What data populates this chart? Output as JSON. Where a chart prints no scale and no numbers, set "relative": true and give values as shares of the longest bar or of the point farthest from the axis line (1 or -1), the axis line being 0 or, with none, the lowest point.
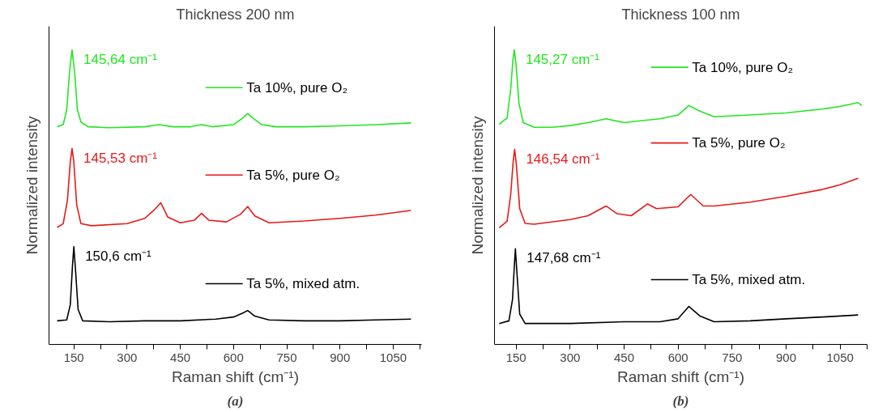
{
  "chart_data": [
    {
      "type": "line",
      "title": "Thickness 200 nm",
      "xlabel": "Raman shift (cm⁻¹)",
      "ylabel": "Normalized intensity",
      "relative": true,
      "grid": false,
      "legend": "right",
      "marker": "none",
      "line_style": "solid",
      "xlim": [
        80,
        1130
      ],
      "xticks": [
        150,
        {
          "value": 225,
          "label": null
        },
        300,
        {
          "value": 375,
          "label": null
        },
        450,
        {
          "value": 525,
          "label": null
        },
        600,
        {
          "value": 675,
          "label": null
        },
        750,
        {
          "value": 825,
          "label": null
        },
        900,
        {
          "value": 975,
          "label": null
        },
        1050,
        {
          "value": 1125,
          "label": null
        }
      ],
      "series": [
        {
          "name": "Ta 10%, pure O₂",
          "color": "#22e622",
          "x": [
            103,
            120,
            130,
            138,
            145,
            152,
            160,
            170,
            190,
            250,
            350,
            390,
            430,
            480,
            510,
            540,
            600,
            625,
            640,
            655,
            680,
            720,
            800,
            900,
            1000,
            1100
          ],
          "values": [
            0.739,
            0.746,
            0.797,
            0.927,
            1.0,
            0.927,
            0.797,
            0.755,
            0.739,
            0.736,
            0.739,
            0.746,
            0.739,
            0.739,
            0.746,
            0.739,
            0.746,
            0.768,
            0.784,
            0.768,
            0.746,
            0.739,
            0.739,
            0.742,
            0.746,
            0.752
          ]
        },
        {
          "name": "Ta 5%, pure O₂",
          "color": "#e81818",
          "x": [
            103,
            120,
            132,
            140,
            145,
            150,
            158,
            170,
            200,
            300,
            350,
            375,
            395,
            415,
            450,
            490,
            510,
            530,
            580,
            620,
            640,
            660,
            700,
            800,
            900,
            1000,
            1100
          ],
          "values": [
            0.397,
            0.41,
            0.49,
            0.62,
            0.665,
            0.62,
            0.474,
            0.41,
            0.403,
            0.41,
            0.428,
            0.455,
            0.481,
            0.432,
            0.413,
            0.422,
            0.445,
            0.422,
            0.416,
            0.442,
            0.468,
            0.436,
            0.413,
            0.419,
            0.428,
            0.439,
            0.455
          ]
        },
        {
          "name": "Ta 5%, mixed atm.",
          "color": "#000000",
          "x": [
            103,
            130,
            140,
            146,
            150,
            155,
            162,
            175,
            250,
            350,
            450,
            550,
            600,
            625,
            640,
            660,
            700,
            800,
            900,
            1000,
            1100
          ],
          "values": [
            0.08,
            0.083,
            0.135,
            0.264,
            0.332,
            0.248,
            0.119,
            0.08,
            0.077,
            0.08,
            0.08,
            0.086,
            0.093,
            0.106,
            0.115,
            0.096,
            0.083,
            0.08,
            0.08,
            0.083,
            0.086
          ]
        }
      ],
      "annotations": [
        {
          "text": "145,64 cm⁻¹",
          "x": 145,
          "y": 1.0
        },
        {
          "text": "145,53 cm⁻¹",
          "x": 145,
          "y": 0.665
        },
        {
          "text": "150,6 cm⁻¹",
          "x": 150,
          "y": 0.332
        },
        "(a)"
      ]
    },
    {
      "type": "line",
      "title": "Thickness 100 nm",
      "xlabel": "Raman shift (cm⁻¹)",
      "ylabel": "Normalized intensity",
      "relative": true,
      "grid": false,
      "legend": "right",
      "marker": "none",
      "line_style": "solid",
      "xlim": [
        90,
        1125
      ],
      "xticks": [
        150,
        {
          "value": 225,
          "label": null
        },
        300,
        {
          "value": 375,
          "label": null
        },
        450,
        {
          "value": 525,
          "label": null
        },
        600,
        {
          "value": 675,
          "label": null
        },
        750,
        {
          "value": 825,
          "label": null
        },
        900,
        {
          "value": 975,
          "label": null
        },
        1050,
        {
          "value": 1125,
          "label": null
        }
      ],
      "series": [
        {
          "name": "Ta 10%, pure O₂",
          "color": "#22e622",
          "x": [
            103,
            125,
            135,
            141,
            145,
            150,
            158,
            170,
            200,
            250,
            300,
            350,
            400,
            450,
            500,
            550,
            600,
            630,
            660,
            700,
            800,
            900,
            1000,
            1050,
            1100,
            1110
          ],
          "values": [
            0.747,
            0.769,
            0.867,
            0.964,
            1.0,
            0.948,
            0.818,
            0.753,
            0.737,
            0.737,
            0.743,
            0.753,
            0.766,
            0.753,
            0.76,
            0.766,
            0.779,
            0.811,
            0.792,
            0.773,
            0.779,
            0.786,
            0.799,
            0.808,
            0.821,
            0.811
          ]
        },
        {
          "name": "Ta 5%, pure O₂",
          "color": "#e81818",
          "x": [
            103,
            125,
            135,
            142,
            146,
            151,
            160,
            175,
            200,
            300,
            350,
            400,
            430,
            470,
            515,
            540,
            600,
            635,
            670,
            700,
            800,
            900,
            1000,
            1050,
            1100
          ],
          "values": [
            0.396,
            0.418,
            0.509,
            0.623,
            0.662,
            0.607,
            0.461,
            0.411,
            0.408,
            0.424,
            0.437,
            0.47,
            0.444,
            0.437,
            0.477,
            0.461,
            0.467,
            0.509,
            0.47,
            0.47,
            0.483,
            0.503,
            0.526,
            0.542,
            0.564
          ]
        },
        {
          "name": "Ta 5%, mixed atm.",
          "color": "#000000",
          "x": [
            103,
            130,
            140,
            145,
            148,
            152,
            160,
            175,
            300,
            450,
            550,
            600,
            630,
            660,
            700,
            800,
            900,
            1000,
            1100
          ],
          "values": [
            0.071,
            0.08,
            0.152,
            0.265,
            0.325,
            0.249,
            0.103,
            0.071,
            0.071,
            0.077,
            0.077,
            0.087,
            0.129,
            0.097,
            0.077,
            0.08,
            0.087,
            0.093,
            0.1
          ]
        }
      ],
      "annotations": [
        {
          "text": "145,27 cm⁻¹",
          "x": 145,
          "y": 1.0
        },
        {
          "text": "146,54 cm⁻¹",
          "x": 146,
          "y": 0.662
        },
        {
          "text": "147,68 cm⁻¹",
          "x": 148,
          "y": 0.325
        },
        "(b)"
      ]
    }
  ]
}
